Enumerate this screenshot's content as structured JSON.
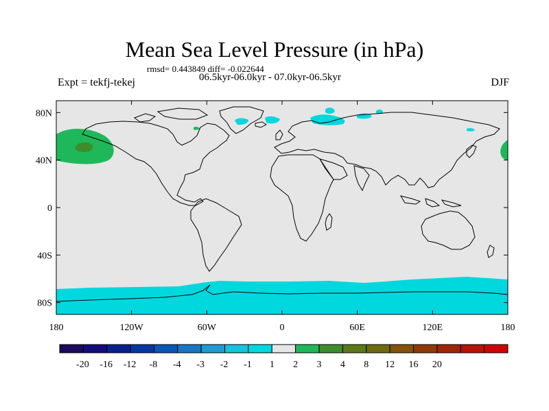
{
  "title": "Mean Sea Level Pressure (in hPa)",
  "stats_line": "rmsd= 0.443849 diff= -0.022644",
  "period_line": "06.5kyr-06.0kyr - 07.0kyr-06.5kyr",
  "experiment_label": "Expt = tekfj-tekej",
  "season_label": "DJF",
  "lat_ticks": [
    {
      "label": "80N",
      "lat": 80
    },
    {
      "label": "40N",
      "lat": 40
    },
    {
      "label": "0",
      "lat": 0
    },
    {
      "label": "40S",
      "lat": -40
    },
    {
      "label": "80S",
      "lat": -80
    }
  ],
  "lon_ticks": [
    {
      "label": "180",
      "lon": -180
    },
    {
      "label": "120W",
      "lon": -120
    },
    {
      "label": "60W",
      "lon": -60
    },
    {
      "label": "0",
      "lon": 0
    },
    {
      "label": "60E",
      "lon": 60
    },
    {
      "label": "120E",
      "lon": 120
    },
    {
      "label": "180",
      "lon": 180
    }
  ],
  "colorbar": {
    "colors": [
      "#1b0a5e",
      "#130d7c",
      "#0a1f8f",
      "#0637a5",
      "#0a55b7",
      "#1777c5",
      "#1f9bd2",
      "#15c3dd",
      "#00d8dd",
      "#e6e6e6",
      "#1eb85a",
      "#3e8d2a",
      "#5b7a17",
      "#6e6a0f",
      "#85520a",
      "#8f3a06",
      "#a02404",
      "#b51406",
      "#cc0404"
    ],
    "labels": [
      "-20",
      "-16",
      "-12",
      "-8",
      "-4",
      "-3",
      "-2",
      "-1",
      "1",
      "2",
      "3",
      "4",
      "8",
      "12",
      "16",
      "20"
    ]
  },
  "colors": {
    "map_background": "#e6e6e6",
    "cyan_fill": "#00d8dd",
    "green_fill": "#1eb85a",
    "dark_green_fill": "#3e8d2a",
    "olive_fill": "#5b7a17"
  }
}
